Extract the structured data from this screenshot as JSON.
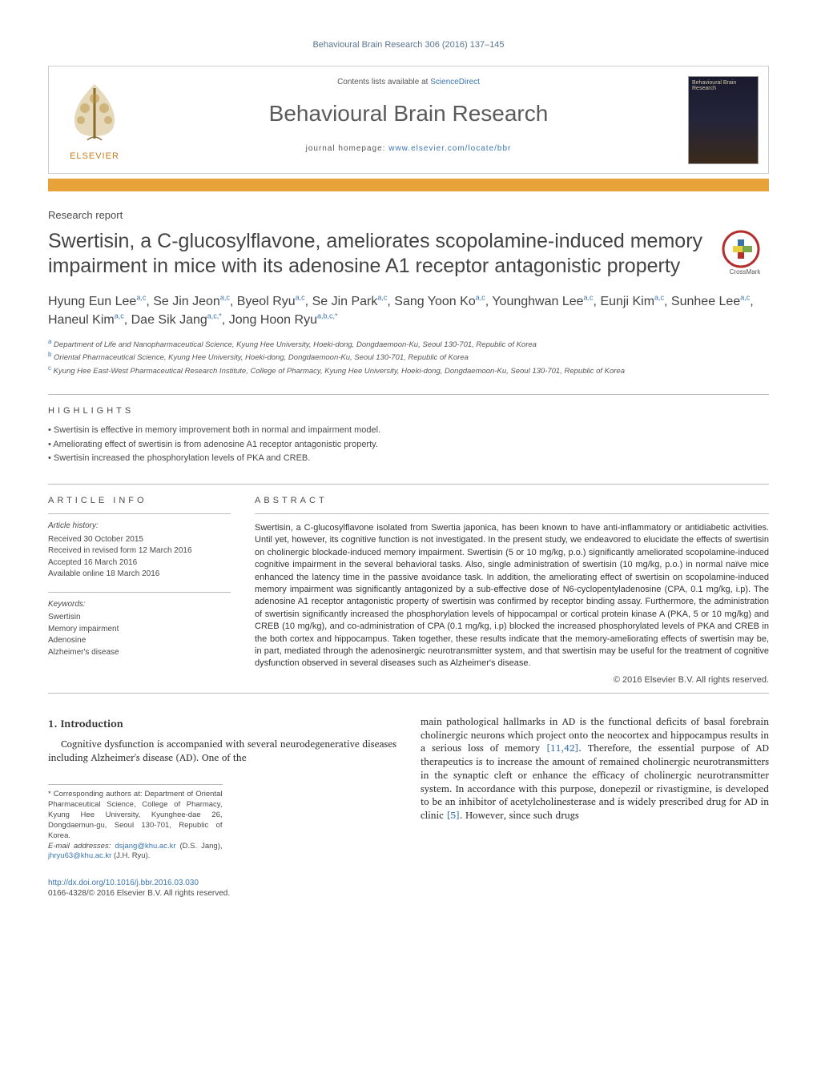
{
  "running_head": "Behavioural Brain Research 306 (2016) 137–145",
  "header": {
    "contents_prefix": "Contents lists available at ",
    "contents_link": "ScienceDirect",
    "journal_name": "Behavioural Brain Research",
    "homepage_prefix": "journal homepage: ",
    "homepage_link": "www.elsevier.com/locate/bbr",
    "publisher_logo_label": "ELSEVIER",
    "cover_label": "Behavioural Brain Research"
  },
  "meta": {
    "article_type": "Research report",
    "title": "Swertisin, a C-glucosylflavone, ameliorates scopolamine-induced memory impairment in mice with its adenosine A1 receptor antagonistic property",
    "crossmark_label": "CrossMark"
  },
  "authors_html": "Hyung Eun Lee<sup>a,c</sup>, Se Jin Jeon<sup>a,c</sup>, Byeol Ryu<sup>a,c</sup>, Se Jin Park<sup>a,c</sup>, Sang Yoon Ko<sup>a,c</sup>, Younghwan Lee<sup>a,c</sup>, Eunji Kim<sup>a,c</sup>, Sunhee Lee<sup>a,c</sup>, Haneul Kim<sup>a,c</sup>, Dae Sik Jang<sup>a,c,*</sup>, Jong Hoon Ryu<sup>a,b,c,*</sup>",
  "affiliations": [
    {
      "tag": "a",
      "text": "Department of Life and Nanopharmaceutical Science, Kyung Hee University, Hoeki-dong, Dongdaemoon-Ku, Seoul 130-701, Republic of Korea"
    },
    {
      "tag": "b",
      "text": "Oriental Pharmaceutical Science, Kyung Hee University, Hoeki-dong, Dongdaemoon-Ku, Seoul 130-701, Republic of Korea"
    },
    {
      "tag": "c",
      "text": "Kyung Hee East-West Pharmaceutical Research Institute, College of Pharmacy, Kyung Hee University, Hoeki-dong, Dongdaemoon-Ku, Seoul 130-701, Republic of Korea"
    }
  ],
  "highlights_label": "HIGHLIGHTS",
  "highlights": [
    "Swertisin is effective in memory improvement both in normal and impairment model.",
    "Ameliorating effect of swertisin is from adenosine A1 receptor antagonistic property.",
    "Swertisin increased the phosphorylation levels of PKA and CREB."
  ],
  "article_info_label": "ARTICLE INFO",
  "history": {
    "header": "Article history:",
    "received": "Received 30 October 2015",
    "revised": "Received in revised form 12 March 2016",
    "accepted": "Accepted 16 March 2016",
    "online": "Available online 18 March 2016"
  },
  "keywords_header": "Keywords:",
  "keywords": [
    "Swertisin",
    "Memory impairment",
    "Adenosine",
    "Alzheimer's disease"
  ],
  "abstract_label": "ABSTRACT",
  "abstract": "Swertisin, a C-glucosylflavone isolated from Swertia japonica, has been known to have anti-inflammatory or antidiabetic activities. Until yet, however, its cognitive function is not investigated. In the present study, we endeavored to elucidate the effects of swertisin on cholinergic blockade-induced memory impairment. Swertisin (5 or 10 mg/kg, p.o.) significantly ameliorated scopolamine-induced cognitive impairment in the several behavioral tasks. Also, single administration of swertisin (10 mg/kg, p.o.) in normal naïve mice enhanced the latency time in the passive avoidance task. In addition, the ameliorating effect of swertisin on scopolamine-induced memory impairment was significantly antagonized by a sub-effective dose of N6-cyclopentyladenosine (CPA, 0.1 mg/kg, i.p). The adenosine A1 receptor antagonistic property of swertisin was confirmed by receptor binding assay. Furthermore, the administration of swertisin significantly increased the phosphorylation levels of hippocampal or cortical protein kinase A (PKA, 5 or 10 mg/kg) and CREB (10 mg/kg), and co-administration of CPA (0.1 mg/kg, i.p) blocked the increased phosphorylated levels of PKA and CREB in the both cortex and hippocampus. Taken together, these results indicate that the memory-ameliorating effects of swertisin may be, in part, mediated through the adenosinergic neurotransmitter system, and that swertisin may be useful for the treatment of cognitive dysfunction observed in several diseases such as Alzheimer's disease.",
  "copyright": "© 2016 Elsevier B.V. All rights reserved.",
  "section1": {
    "heading": "1. Introduction",
    "para1": "Cognitive dysfunction is accompanied with several neurodegenerative diseases including Alzheimer's disease (AD). One of the",
    "para2_a": "main pathological hallmarks in AD is the functional deficits of basal forebrain cholinergic neurons which project onto the neocortex and hippocampus results in a serious loss of memory ",
    "para2_ref1": "[11,42]",
    "para2_b": ". Therefore, the essential purpose of AD therapeutics is to increase the amount of remained cholinergic neurotransmitters in the synaptic cleft or enhance the efficacy of cholinergic neurotransmitter system. In accordance with this purpose, donepezil or rivastigmine, is developed to be an inhibitor of acetylcholinesterase and is widely prescribed drug for AD in clinic ",
    "para2_ref2": "[5]",
    "para2_c": ". However, since such drugs"
  },
  "footnote": {
    "corresponding": "* Corresponding authors at: Department of Oriental Pharmaceutical Science, College of Pharmacy, Kyung Hee University, Kyunghee-dae 26, Dongdaemun-gu, Seoul 130-701, Republic of Korea.",
    "email_label": "E-mail addresses: ",
    "email1": "dsjang@khu.ac.kr",
    "email1_name": " (D.S. Jang), ",
    "email2": "jhryu63@khu.ac.kr",
    "email2_name": " (J.H. Ryu)."
  },
  "bottom": {
    "doi": "http://dx.doi.org/10.1016/j.bbr.2016.03.030",
    "issn_cr": "0166-4328/© 2016 Elsevier B.V. All rights reserved."
  },
  "colors": {
    "link": "#3b75b0",
    "orange_bar": "#e8a23a",
    "text_grey": "#4a4a4a",
    "rule": "#bbbbbb"
  }
}
